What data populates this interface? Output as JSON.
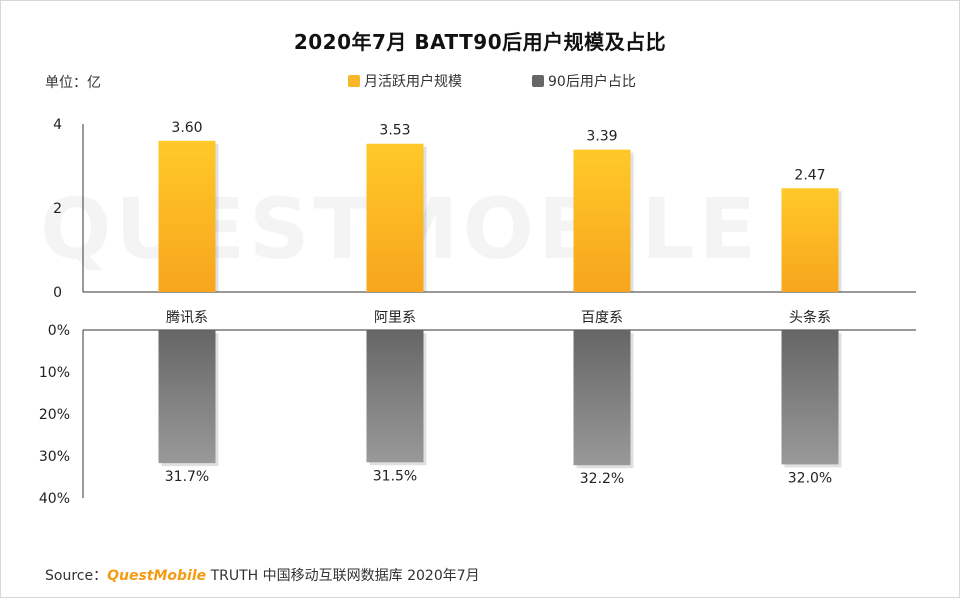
{
  "title": "2020年7月 BATT90后用户规模及占比",
  "unit_label": "单位：亿",
  "watermark": "QUESTMOBILE",
  "source": {
    "prefix": "Source：",
    "brand": "QuestMobile",
    "rest": " TRUTH 中国移动互联网数据库 2020年7月"
  },
  "colors": {
    "mau_top": "#ffc928",
    "mau_bottom": "#f7a51e",
    "share_top": "#666666",
    "share_bottom": "#999999",
    "axis": "#333333"
  },
  "chart_data": [
    {
      "type": "bar",
      "categories": [
        "腾讯系",
        "阿里系",
        "百度系",
        "头条系"
      ],
      "series": [
        {
          "name": "月活跃用户规模",
          "values": [
            3.6,
            3.53,
            3.39,
            2.47
          ]
        }
      ],
      "value_labels": [
        "3.60",
        "3.53",
        "3.39",
        "2.47"
      ],
      "yticks": [
        "0",
        "2",
        "4"
      ],
      "ylim": [
        0,
        4
      ]
    },
    {
      "type": "bar",
      "categories": [
        "腾讯系",
        "阿里系",
        "百度系",
        "头条系"
      ],
      "series": [
        {
          "name": "90后用户占比",
          "values": [
            31.7,
            31.5,
            32.2,
            32.0
          ]
        }
      ],
      "value_labels": [
        "31.7%",
        "31.5%",
        "32.2%",
        "32.0%"
      ],
      "yticks": [
        "0%",
        "10%",
        "20%",
        "30%",
        "40%"
      ],
      "ylim": [
        0,
        40
      ],
      "inverted": true
    }
  ]
}
